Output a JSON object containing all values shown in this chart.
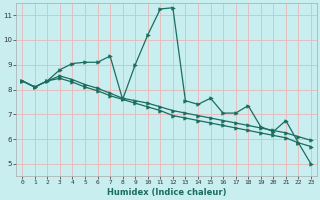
{
  "xlabel": "Humidex (Indice chaleur)",
  "background_color": "#c8eef0",
  "grid_color": "#e8b8b8",
  "line_color": "#1a6e60",
  "xlim": [
    -0.5,
    23.5
  ],
  "ylim": [
    4.5,
    11.5
  ],
  "xticks": [
    0,
    1,
    2,
    3,
    4,
    5,
    6,
    7,
    8,
    9,
    10,
    11,
    12,
    13,
    14,
    15,
    16,
    17,
    18,
    19,
    20,
    21,
    22,
    23
  ],
  "yticks": [
    5,
    6,
    7,
    8,
    9,
    10,
    11
  ],
  "line1_x": [
    0,
    1,
    2,
    3,
    4,
    5,
    6,
    7,
    8,
    9,
    10,
    11,
    12,
    13,
    14,
    15,
    16,
    17,
    18,
    19,
    20,
    21,
    22,
    23
  ],
  "line1_y": [
    8.35,
    8.1,
    8.35,
    8.8,
    9.05,
    9.1,
    9.1,
    9.35,
    7.6,
    9.0,
    10.2,
    11.25,
    11.3,
    7.55,
    7.4,
    7.65,
    7.05,
    7.05,
    7.35,
    6.5,
    6.3,
    6.75,
    5.85,
    5.0
  ],
  "line2_x": [
    0,
    1,
    2,
    3,
    4,
    5,
    6,
    7,
    8,
    9,
    10,
    11,
    12,
    13,
    14,
    15,
    16,
    17,
    18,
    19,
    20,
    21,
    22,
    23
  ],
  "line2_y": [
    8.35,
    8.1,
    8.35,
    8.55,
    8.4,
    8.2,
    8.05,
    7.85,
    7.65,
    7.55,
    7.45,
    7.3,
    7.15,
    7.05,
    6.95,
    6.85,
    6.75,
    6.65,
    6.55,
    6.45,
    6.35,
    6.25,
    6.1,
    5.95
  ],
  "line3_x": [
    0,
    1,
    2,
    3,
    4,
    5,
    6,
    7,
    8,
    9,
    10,
    11,
    12,
    13,
    14,
    15,
    16,
    17,
    18,
    19,
    20,
    21,
    22,
    23
  ],
  "line3_y": [
    8.35,
    8.1,
    8.35,
    8.45,
    8.3,
    8.1,
    7.95,
    7.75,
    7.6,
    7.45,
    7.3,
    7.15,
    6.95,
    6.85,
    6.75,
    6.65,
    6.55,
    6.45,
    6.35,
    6.25,
    6.15,
    6.05,
    5.85,
    5.7
  ]
}
